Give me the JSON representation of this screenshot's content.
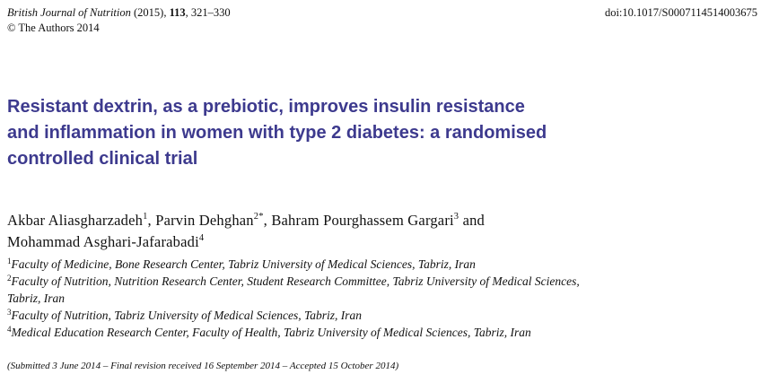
{
  "header": {
    "journal_name": "British Journal of Nutrition",
    "year": "(2015),",
    "volume": "113",
    "pages": ", 321–330",
    "copyright": "© The Authors 2014",
    "doi": "doi:10.1017/S0007114514003675"
  },
  "title": {
    "lines": [
      "Resistant dextrin, as a prebiotic, improves insulin resistance",
      "and inflammation in women with type 2 diabetes: a randomised",
      "controlled clinical trial"
    ]
  },
  "authors": [
    {
      "name": "Akbar Aliasgharzadeh",
      "sup": "1",
      "sep": ", "
    },
    {
      "name": "Parvin Dehghan",
      "sup": "2*",
      "sep": ", "
    },
    {
      "name": "Bahram Pourghassem Gargari",
      "sup": "3",
      "sep": " and"
    },
    {
      "name": "Mohammad Asghari-Jafarabadi",
      "sup": "4",
      "sep": ""
    }
  ],
  "affiliations": [
    {
      "num": "1",
      "line1": "Faculty of Medicine, Bone Research Center, Tabriz University of Medical Sciences, Tabriz, Iran",
      "line2": ""
    },
    {
      "num": "2",
      "line1": "Faculty of Nutrition, Nutrition Research Center, Student Research Committee, Tabriz University of Medical Sciences,",
      "line2": "Tabriz, Iran"
    },
    {
      "num": "3",
      "line1": "Faculty of Nutrition, Tabriz University of Medical Sciences, Tabriz, Iran",
      "line2": ""
    },
    {
      "num": "4",
      "line1": "Medical Education Research Center, Faculty of Health, Tabriz University of Medical Sciences, Tabriz, Iran",
      "line2": ""
    }
  ],
  "submitted": "(Submitted 3 June 2014 – Final revision received 16 September 2014 – Accepted 15 October 2014)",
  "colors": {
    "title": "#3d3a8e",
    "text": "#111111"
  }
}
